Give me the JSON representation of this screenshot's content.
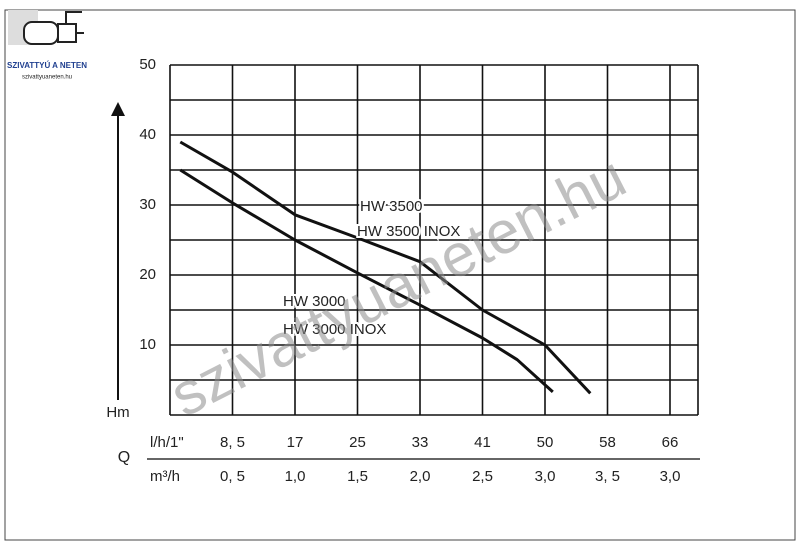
{
  "logo": {
    "name": "SZIVATTYÚ A NETEN",
    "url": "szivattyuaneten.hu"
  },
  "watermark": "szivattyuaneten.hu",
  "chart_data": {
    "type": "line",
    "y_label": "Hm",
    "x_label": "Q",
    "x_unit_primary": "l/h/1\"",
    "x_unit_secondary": "m³/h",
    "xlim": [
      0,
      70
    ],
    "xticks": [
      {
        "value": 8.5,
        "label": "8, 5"
      },
      17,
      25,
      33,
      41,
      50,
      58,
      66
    ],
    "x_secondary_labels": [
      "0, 5",
      "1,0",
      "1,5",
      "2,0",
      "2,5",
      "3,0",
      "3, 5",
      "3,0"
    ],
    "ylim": [
      0,
      50
    ],
    "yticks": [
      10,
      20,
      30,
      40,
      50
    ],
    "minor_yticks": [
      0,
      5,
      15,
      25,
      35,
      45
    ],
    "grid": true,
    "series": [
      {
        "name": "HW 3500",
        "name2": "HW 3500 INOX",
        "color": "#111111",
        "x": [
          1.4,
          8.5,
          17,
          25,
          33,
          41,
          50,
          55.8
        ],
        "values": [
          39,
          34.7,
          28.6,
          25.3,
          21.9,
          15,
          10,
          3.1
        ]
      },
      {
        "name": "HW 3000",
        "name2": "HW 3000 INOX",
        "color": "#111111",
        "x": [
          1.4,
          8.5,
          17,
          25,
          33,
          41,
          46,
          51
        ],
        "values": [
          35,
          30.3,
          25,
          20.3,
          15.7,
          11,
          7.9,
          3.3
        ]
      }
    ]
  }
}
